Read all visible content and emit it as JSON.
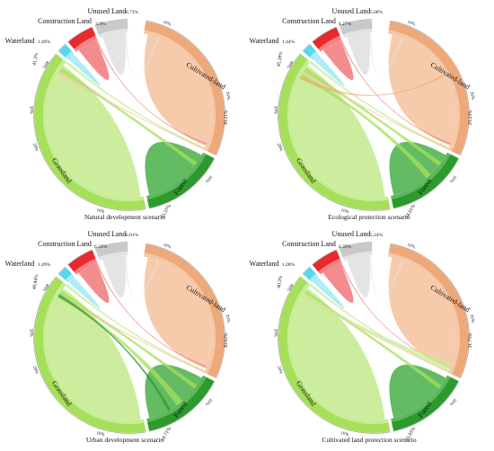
{
  "colors": {
    "outer_ring": {
      "Unused Land": "#c9c9c9",
      "Construction Land": "#e8292d",
      "Waterland": "#58d7e9",
      "Grassland": "#a6e05b",
      "Forest": "#2c9a2c",
      "Cultivated-land": "#eda97a"
    },
    "inner_ring": {
      "Unused Land": "#e3e3e3",
      "Construction Land": "#f27f82",
      "Waterland": "#a8ecf5",
      "Grassland": "#c9ec98",
      "Forest": "#5bb75b",
      "Cultivated-land": "#f5c8a7"
    }
  },
  "sector_labels": {
    "unused": "Unused Land",
    "construction": "Construction Land",
    "water": "Waterland",
    "grass": "Grassland",
    "forest": "Forest",
    "cultivated": "Cultivated-land"
  },
  "tick_labels": {
    "t10": "10%",
    "t20": "20%",
    "t30": "30%",
    "t40": "40%"
  },
  "panels": [
    {
      "caption": "Natural development scenario",
      "percent_labels": {
        "unused": "6.73%",
        "construction": "4.9%",
        "water": "1.49%",
        "grass": "41.3%",
        "forest": "15.37%",
        "cultivated": "30.21%"
      }
    },
    {
      "caption": "Ecological protection scenario",
      "percent_labels": {
        "unused": "5.08%",
        "construction": "4.27%",
        "water": "1.44%",
        "grass": "45.39%",
        "forest": "14.61%",
        "cultivated": "29.23%"
      }
    },
    {
      "caption": "Urban development scenario",
      "percent_labels": {
        "unused": "6.01%",
        "construction": "6.33%",
        "water": "1.49%",
        "grass": "40.84%",
        "forest": "14.71%",
        "cultivated": "30.62%"
      }
    },
    {
      "caption": "Cultivated land protection scenario",
      "percent_labels": {
        "unused": "5.24%",
        "construction": "4.39%",
        "water": "1.28%",
        "grass": "40.3%",
        "forest": "15.05%",
        "cultivated": "31.75%"
      }
    }
  ]
}
